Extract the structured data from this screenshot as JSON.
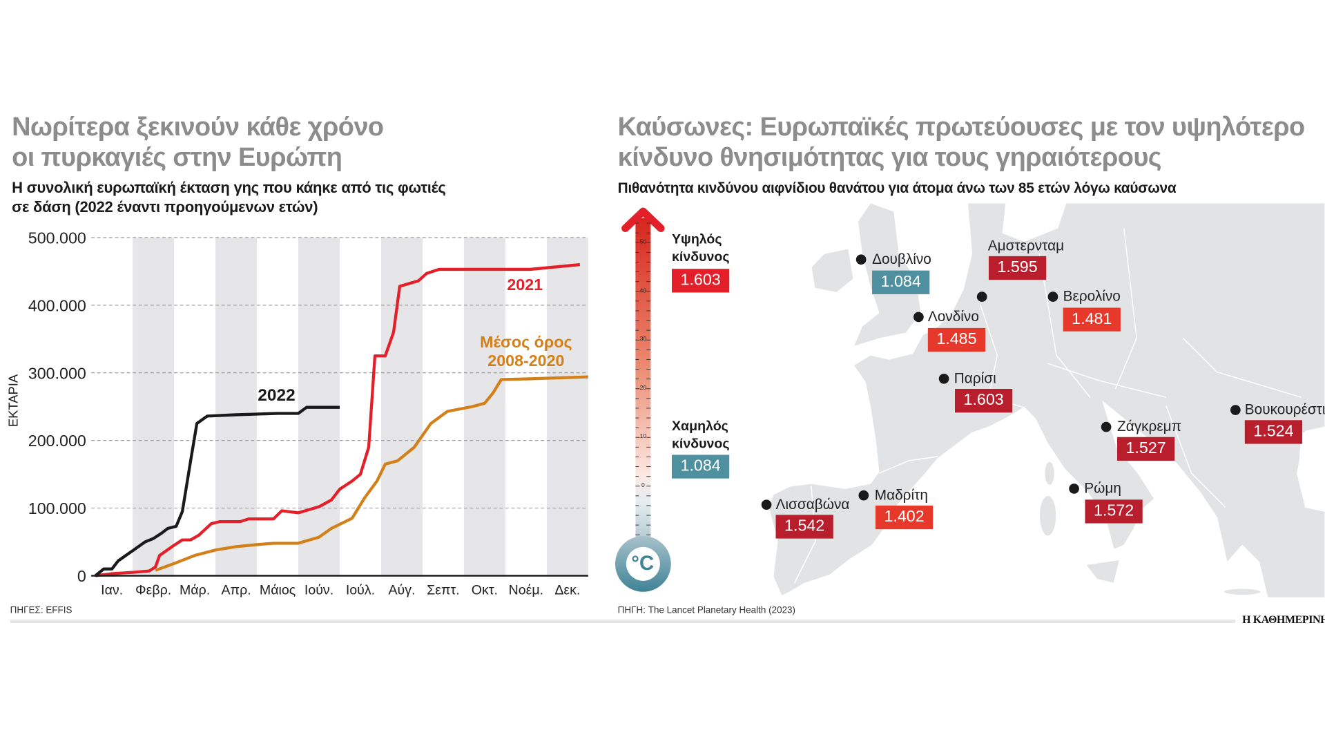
{
  "left": {
    "title_lines": [
      "Νωρίτερα ξεκινούν κάθε χρόνο",
      "οι πυρκαγιές στην Ευρώπη"
    ],
    "subtitle_lines": [
      "Η συνολική ευρωπαϊκή έκταση γης που κάηκε από τις φωτιές",
      "σε δάση (2022 έναντι προηγούμενων ετών)"
    ],
    "source": "ΠΗΓΕΣ: EFFIS"
  },
  "chart_data": {
    "type": "line",
    "ylabel": "ΕΚΤΑΡΙΑ",
    "ylim": [
      0,
      500000
    ],
    "y_ticks": [
      0,
      100000,
      200000,
      300000,
      400000,
      500000
    ],
    "y_tick_labels": [
      "0",
      "100.000",
      "200.000",
      "300.000",
      "400.000",
      "500.000"
    ],
    "categories": [
      "Ιαν.",
      "Φεβρ.",
      "Μάρ.",
      "Απρ.",
      "Μάιος",
      "Ιούν.",
      "Ιούλ.",
      "Αύγ.",
      "Σεπτ.",
      "Οκτ.",
      "Νοέμ.",
      "Δεκ."
    ],
    "x_unit": "month",
    "grid": "horizontal dashed",
    "alternating_month_shading": true,
    "series": [
      {
        "name": "2022",
        "color": "#1a1a1a",
        "points": [
          [
            0.1,
            0
          ],
          [
            0.3,
            10000
          ],
          [
            0.5,
            10000
          ],
          [
            0.65,
            22000
          ],
          [
            1.0,
            37000
          ],
          [
            1.3,
            50000
          ],
          [
            1.5,
            55000
          ],
          [
            1.7,
            63000
          ],
          [
            1.85,
            70000
          ],
          [
            2.05,
            73000
          ],
          [
            2.2,
            95000
          ],
          [
            2.4,
            170000
          ],
          [
            2.55,
            225000
          ],
          [
            2.8,
            236000
          ],
          [
            3.5,
            238000
          ],
          [
            4.0,
            239000
          ],
          [
            4.5,
            240000
          ],
          [
            5.0,
            240000
          ],
          [
            5.2,
            249000
          ],
          [
            6.0,
            249000
          ]
        ]
      },
      {
        "name": "2021",
        "color": "#e3202a",
        "points": [
          [
            0.1,
            0
          ],
          [
            0.5,
            3000
          ],
          [
            1.0,
            5000
          ],
          [
            1.4,
            7000
          ],
          [
            1.55,
            13000
          ],
          [
            1.65,
            30000
          ],
          [
            2.0,
            45000
          ],
          [
            2.2,
            53000
          ],
          [
            2.4,
            53000
          ],
          [
            2.6,
            60000
          ],
          [
            2.9,
            77000
          ],
          [
            3.1,
            80000
          ],
          [
            3.6,
            80000
          ],
          [
            3.8,
            84000
          ],
          [
            4.4,
            84000
          ],
          [
            4.6,
            96000
          ],
          [
            5.0,
            93000
          ],
          [
            5.5,
            102000
          ],
          [
            5.8,
            112000
          ],
          [
            6.0,
            128000
          ],
          [
            6.3,
            140000
          ],
          [
            6.5,
            150000
          ],
          [
            6.7,
            190000
          ],
          [
            6.85,
            325000
          ],
          [
            7.1,
            325000
          ],
          [
            7.3,
            360000
          ],
          [
            7.45,
            428000
          ],
          [
            7.9,
            436000
          ],
          [
            8.1,
            447000
          ],
          [
            8.4,
            453000
          ],
          [
            9.0,
            453000
          ],
          [
            10.0,
            453000
          ],
          [
            10.6,
            453000
          ],
          [
            11.8,
            460000
          ]
        ]
      },
      {
        "name": "Μέσος όρος 2008-2020",
        "color": "#d4801a",
        "points": [
          [
            1.55,
            8000
          ],
          [
            2.0,
            18000
          ],
          [
            2.5,
            30000
          ],
          [
            3.0,
            38000
          ],
          [
            3.5,
            43000
          ],
          [
            4.0,
            46000
          ],
          [
            4.4,
            48000
          ],
          [
            5.0,
            48000
          ],
          [
            5.5,
            57000
          ],
          [
            5.8,
            70000
          ],
          [
            6.3,
            85000
          ],
          [
            6.6,
            115000
          ],
          [
            6.9,
            140000
          ],
          [
            7.1,
            165000
          ],
          [
            7.4,
            170000
          ],
          [
            7.8,
            190000
          ],
          [
            8.2,
            225000
          ],
          [
            8.6,
            243000
          ],
          [
            9.2,
            250000
          ],
          [
            9.5,
            255000
          ],
          [
            9.7,
            270000
          ],
          [
            9.9,
            290000
          ],
          [
            10.5,
            291000
          ],
          [
            12.0,
            294000
          ]
        ]
      }
    ],
    "series_labels": {
      "s2022": "2022",
      "s2021": "2021",
      "avg_line1": "Μέσος όρος",
      "avg_line2": "2008-2020"
    }
  },
  "right": {
    "title_lines": [
      "Καύσωνες: Ευρωπαϊκές πρωτεύουσες με τον υψηλότερο",
      "κίνδυνο θνησιμότητας για τους γηραιότερους"
    ],
    "subtitle": "Πιθανότητα κινδύνου αιφνίδιου θανάτου για άτομα άνω των 85 ετών λόγω καύσωνα",
    "source": "ΠΗΓΗ: The Lancet Planetary Health (2023)",
    "thermometer": {
      "tick_labels": [
        "50",
        "40",
        "30",
        "20",
        "10",
        "0"
      ],
      "unit": "°C",
      "high_label": [
        "Υψηλός",
        "κίνδυνος"
      ],
      "high_value": "1.603",
      "high_color": "#e3202a",
      "low_label": [
        "Χαμηλός",
        "κίνδυνος"
      ],
      "low_value": "1.084",
      "low_color": "#4e8fa0"
    },
    "cities": [
      {
        "name": "Δουβλίνο",
        "value": "1.084",
        "color": "#4e8fa0"
      },
      {
        "name": "Αμστερνταμ",
        "value": "1.595",
        "color": "#b81e2b"
      },
      {
        "name": "Βερολίνο",
        "value": "1.481",
        "color": "#e6392b"
      },
      {
        "name": "Λονδίνο",
        "value": "1.485",
        "color": "#e6392b"
      },
      {
        "name": "Παρίσι",
        "value": "1.603",
        "color": "#b81e2b"
      },
      {
        "name": "Βουκουρέστι",
        "value": "1.524",
        "color": "#b81e2b"
      },
      {
        "name": "Ζάγκρεμπ",
        "value": "1.527",
        "color": "#b81e2b"
      },
      {
        "name": "Ρώμη",
        "value": "1.572",
        "color": "#b81e2b"
      },
      {
        "name": "Μαδρίτη",
        "value": "1.402",
        "color": "#e6392b"
      },
      {
        "name": "Λισσαβώνα",
        "value": "1.542",
        "color": "#b81e2b"
      }
    ]
  },
  "brand": "Η ΚΑΘΗΜΕΡΙΝΗ"
}
